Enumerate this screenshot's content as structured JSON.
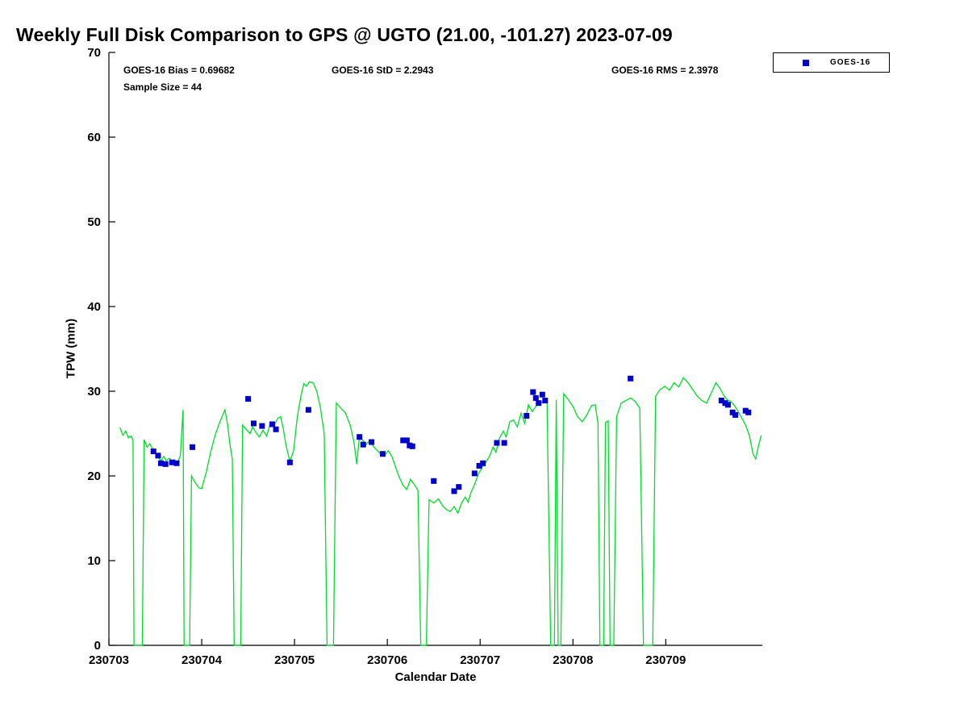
{
  "title": "Weekly Full Disk Comparison to GPS @ UGTO (21.00, -101.27) 2023-07-09",
  "annotations": {
    "bias": "GOES-16 Bias = 0.69682",
    "std": "GOES-16 StD = 2.2943",
    "rms": "GOES-16 RMS = 2.3978",
    "sample_size": "Sample Size = 44"
  },
  "legend": {
    "items": [
      {
        "label": "GOES-16",
        "marker_color": "#0000cd",
        "marker": "square"
      }
    ],
    "position": "top-right"
  },
  "chart_data": {
    "type": "line",
    "title": "Weekly Full Disk Comparison to GPS @ UGTO (21.00, -101.27) 2023-07-09",
    "xlabel": "Calendar Date",
    "ylabel": "TPW (mm)",
    "xlim": [
      0,
      7.04
    ],
    "ylim": [
      0,
      70
    ],
    "grid": false,
    "x_ticks": {
      "positions": [
        0,
        1,
        2,
        3,
        4,
        5,
        6
      ],
      "labels": [
        "230703",
        "230704",
        "230705",
        "230706",
        "230707",
        "230708",
        "230709"
      ]
    },
    "y_ticks": [
      0,
      10,
      20,
      30,
      40,
      50,
      60,
      70
    ],
    "series": [
      {
        "name": "GPS",
        "type": "line",
        "color": "#00dd2a",
        "points": [
          [
            0.12,
            25.7
          ],
          [
            0.15,
            24.8
          ],
          [
            0.18,
            25.3
          ],
          [
            0.21,
            24.5
          ],
          [
            0.24,
            24.7
          ],
          [
            0.26,
            24.2
          ],
          [
            0.27,
            0
          ],
          [
            0.36,
            0
          ],
          [
            0.38,
            24.3
          ],
          [
            0.41,
            23.4
          ],
          [
            0.44,
            23.8
          ],
          [
            0.47,
            23.2
          ],
          [
            0.5,
            22.8
          ],
          [
            0.53,
            22.2
          ],
          [
            0.56,
            21.8
          ],
          [
            0.59,
            22.3
          ],
          [
            0.62,
            21.8
          ],
          [
            0.65,
            22.1
          ],
          [
            0.68,
            21.7
          ],
          [
            0.71,
            21.9
          ],
          [
            0.74,
            21.6
          ],
          [
            0.77,
            22.4
          ],
          [
            0.79,
            26.2
          ],
          [
            0.8,
            27.8
          ],
          [
            0.81,
            0
          ],
          [
            0.87,
            0
          ],
          [
            0.89,
            20.0
          ],
          [
            0.93,
            19.2
          ],
          [
            0.97,
            18.6
          ],
          [
            1.0,
            18.5
          ],
          [
            1.05,
            20.5
          ],
          [
            1.1,
            23.0
          ],
          [
            1.15,
            25.0
          ],
          [
            1.2,
            26.5
          ],
          [
            1.25,
            27.8
          ],
          [
            1.28,
            26.0
          ],
          [
            1.3,
            24.0
          ],
          [
            1.33,
            22.0
          ],
          [
            1.35,
            0
          ],
          [
            1.42,
            0
          ],
          [
            1.44,
            26.0
          ],
          [
            1.48,
            25.5
          ],
          [
            1.52,
            25.0
          ],
          [
            1.55,
            25.8
          ],
          [
            1.58,
            25.2
          ],
          [
            1.62,
            24.6
          ],
          [
            1.66,
            25.4
          ],
          [
            1.7,
            24.7
          ],
          [
            1.74,
            26.3
          ],
          [
            1.78,
            26.0
          ],
          [
            1.82,
            26.8
          ],
          [
            1.85,
            27.0
          ],
          [
            1.88,
            25.5
          ],
          [
            1.91,
            23.5
          ],
          [
            1.95,
            21.7
          ],
          [
            1.99,
            23.0
          ],
          [
            2.03,
            27.0
          ],
          [
            2.07,
            29.5
          ],
          [
            2.1,
            30.9
          ],
          [
            2.13,
            30.6
          ],
          [
            2.16,
            31.1
          ],
          [
            2.2,
            31.0
          ],
          [
            2.24,
            30.0
          ],
          [
            2.28,
            28.0
          ],
          [
            2.32,
            25.0
          ],
          [
            2.35,
            0
          ],
          [
            2.42,
            0
          ],
          [
            2.45,
            28.6
          ],
          [
            2.5,
            28.0
          ],
          [
            2.55,
            27.4
          ],
          [
            2.6,
            26.0
          ],
          [
            2.64,
            24.0
          ],
          [
            2.67,
            21.4
          ],
          [
            2.7,
            24.8
          ],
          [
            2.73,
            24.3
          ],
          [
            2.77,
            23.7
          ],
          [
            2.81,
            24.2
          ],
          [
            2.85,
            23.5
          ],
          [
            2.89,
            23.0
          ],
          [
            2.93,
            22.6
          ],
          [
            2.97,
            22.4
          ],
          [
            3.01,
            23.0
          ],
          [
            3.05,
            22.3
          ],
          [
            3.09,
            21.0
          ],
          [
            3.13,
            19.8
          ],
          [
            3.17,
            18.9
          ],
          [
            3.21,
            18.4
          ],
          [
            3.25,
            19.6
          ],
          [
            3.29,
            19.0
          ],
          [
            3.33,
            18.3
          ],
          [
            3.36,
            0
          ],
          [
            3.42,
            0
          ],
          [
            3.45,
            17.2
          ],
          [
            3.5,
            16.8
          ],
          [
            3.55,
            17.3
          ],
          [
            3.6,
            16.4
          ],
          [
            3.64,
            16.0
          ],
          [
            3.68,
            15.8
          ],
          [
            3.72,
            16.4
          ],
          [
            3.76,
            15.6
          ],
          [
            3.8,
            16.8
          ],
          [
            3.84,
            17.5
          ],
          [
            3.87,
            16.9
          ],
          [
            3.9,
            18.0
          ],
          [
            3.94,
            19.0
          ],
          [
            3.98,
            20.2
          ],
          [
            4.02,
            21.0
          ],
          [
            4.06,
            21.6
          ],
          [
            4.1,
            22.3
          ],
          [
            4.14,
            23.4
          ],
          [
            4.17,
            22.8
          ],
          [
            4.21,
            24.5
          ],
          [
            4.25,
            25.3
          ],
          [
            4.28,
            24.6
          ],
          [
            4.32,
            26.4
          ],
          [
            4.36,
            26.6
          ],
          [
            4.4,
            25.8
          ],
          [
            4.44,
            27.4
          ],
          [
            4.48,
            26.2
          ],
          [
            4.52,
            28.4
          ],
          [
            4.56,
            27.6
          ],
          [
            4.6,
            28.2
          ],
          [
            4.64,
            28.8
          ],
          [
            4.68,
            28.6
          ],
          [
            4.72,
            29.0
          ],
          [
            4.76,
            0
          ],
          [
            4.8,
            0
          ],
          [
            4.82,
            29.0
          ],
          [
            4.84,
            0
          ],
          [
            4.87,
            0
          ],
          [
            4.9,
            29.7
          ],
          [
            4.95,
            29.0
          ],
          [
            5.0,
            28.2
          ],
          [
            5.05,
            27.0
          ],
          [
            5.1,
            26.4
          ],
          [
            5.15,
            27.2
          ],
          [
            5.2,
            28.3
          ],
          [
            5.24,
            28.4
          ],
          [
            5.27,
            26.2
          ],
          [
            5.29,
            0
          ],
          [
            5.33,
            0
          ],
          [
            5.35,
            26.3
          ],
          [
            5.38,
            26.5
          ],
          [
            5.4,
            0
          ],
          [
            5.44,
            0
          ],
          [
            5.47,
            27.0
          ],
          [
            5.52,
            28.6
          ],
          [
            5.57,
            28.9
          ],
          [
            5.62,
            29.2
          ],
          [
            5.67,
            28.8
          ],
          [
            5.72,
            28.0
          ],
          [
            5.76,
            0
          ],
          [
            5.86,
            0
          ],
          [
            5.89,
            29.4
          ],
          [
            5.94,
            30.2
          ],
          [
            5.99,
            30.6
          ],
          [
            6.04,
            30.1
          ],
          [
            6.09,
            31.0
          ],
          [
            6.14,
            30.5
          ],
          [
            6.19,
            31.6
          ],
          [
            6.24,
            31.0
          ],
          [
            6.29,
            30.2
          ],
          [
            6.34,
            29.4
          ],
          [
            6.39,
            28.9
          ],
          [
            6.44,
            28.6
          ],
          [
            6.49,
            29.8
          ],
          [
            6.54,
            31.0
          ],
          [
            6.58,
            30.4
          ],
          [
            6.62,
            29.6
          ],
          [
            6.66,
            29.0
          ],
          [
            6.7,
            28.8
          ],
          [
            6.74,
            28.3
          ],
          [
            6.78,
            27.6
          ],
          [
            6.82,
            26.8
          ],
          [
            6.86,
            26.0
          ],
          [
            6.9,
            24.8
          ],
          [
            6.94,
            22.6
          ],
          [
            6.97,
            22.0
          ],
          [
            7.0,
            23.6
          ],
          [
            7.03,
            24.8
          ]
        ]
      },
      {
        "name": "GOES-16",
        "type": "scatter",
        "color": "#0000cd",
        "points": [
          [
            0.48,
            22.9
          ],
          [
            0.53,
            22.4
          ],
          [
            0.56,
            21.5
          ],
          [
            0.61,
            21.4
          ],
          [
            0.68,
            21.6
          ],
          [
            0.73,
            21.5
          ],
          [
            0.9,
            23.4
          ],
          [
            1.5,
            29.1
          ],
          [
            1.56,
            26.2
          ],
          [
            1.65,
            25.9
          ],
          [
            1.76,
            26.1
          ],
          [
            1.8,
            25.5
          ],
          [
            1.95,
            21.6
          ],
          [
            2.15,
            27.8
          ],
          [
            2.7,
            24.6
          ],
          [
            2.74,
            23.7
          ],
          [
            2.83,
            24.0
          ],
          [
            2.95,
            22.6
          ],
          [
            3.17,
            24.2
          ],
          [
            3.21,
            24.2
          ],
          [
            3.24,
            23.6
          ],
          [
            3.27,
            23.5
          ],
          [
            3.5,
            19.4
          ],
          [
            3.72,
            18.2
          ],
          [
            3.77,
            18.7
          ],
          [
            3.94,
            20.3
          ],
          [
            3.99,
            21.2
          ],
          [
            4.03,
            21.5
          ],
          [
            4.18,
            23.9
          ],
          [
            4.26,
            23.9
          ],
          [
            4.5,
            27.1
          ],
          [
            4.57,
            29.9
          ],
          [
            4.6,
            29.2
          ],
          [
            4.63,
            28.6
          ],
          [
            4.67,
            29.6
          ],
          [
            4.7,
            28.9
          ],
          [
            5.62,
            31.5
          ],
          [
            6.6,
            28.9
          ],
          [
            6.64,
            28.6
          ],
          [
            6.67,
            28.4
          ],
          [
            6.72,
            27.5
          ],
          [
            6.75,
            27.2
          ],
          [
            6.86,
            27.7
          ],
          [
            6.89,
            27.5
          ]
        ]
      }
    ]
  }
}
